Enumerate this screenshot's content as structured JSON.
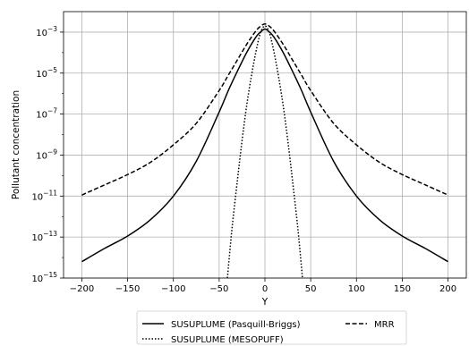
{
  "chart_data": {
    "type": "line",
    "xlabel": "Y",
    "ylabel": "Pollutant concentration",
    "xlim": [
      -220,
      220
    ],
    "ylim_log10": [
      -15,
      -2
    ],
    "y_scale": "log",
    "grid": true,
    "legend_placement": "bottom-center-outside",
    "x_ticks": [
      {
        "value": -200,
        "label": "−200"
      },
      {
        "value": -150,
        "label": "−150"
      },
      {
        "value": -100,
        "label": "−100"
      },
      {
        "value": -50,
        "label": "−50"
      },
      {
        "value": 0,
        "label": "0"
      },
      {
        "value": 50,
        "label": "50"
      },
      {
        "value": 100,
        "label": "100"
      },
      {
        "value": 150,
        "label": "150"
      },
      {
        "value": 200,
        "label": "200"
      }
    ],
    "y_ticks": [
      {
        "exp": -3,
        "base": "10",
        "sup": "−3"
      },
      {
        "exp": -5,
        "base": "10",
        "sup": "−5"
      },
      {
        "exp": -7,
        "base": "10",
        "sup": "−7"
      },
      {
        "exp": -9,
        "base": "10",
        "sup": "−9"
      },
      {
        "exp": -11,
        "base": "10",
        "sup": "−11"
      },
      {
        "exp": -13,
        "base": "10",
        "sup": "−13"
      },
      {
        "exp": -15,
        "base": "10",
        "sup": "−15"
      }
    ],
    "series": [
      {
        "name": "SUSUPLUME (Pasquill-Briggs)",
        "style": "solid",
        "color": "#000000",
        "x": [
          -200,
          -175,
          -150,
          -125,
          -100,
          -75,
          -50,
          -40,
          -30,
          -20,
          -10,
          -5,
          0,
          5,
          10,
          20,
          30,
          40,
          50,
          75,
          100,
          125,
          150,
          175,
          200
        ],
        "log10_y": [
          -14.2,
          -13.55,
          -12.95,
          -12.15,
          -11.0,
          -9.3,
          -6.9,
          -5.85,
          -4.9,
          -4.0,
          -3.25,
          -3.0,
          -2.85,
          -3.0,
          -3.25,
          -4.0,
          -4.9,
          -5.85,
          -6.9,
          -9.3,
          -11.0,
          -12.15,
          -12.95,
          -13.55,
          -14.2
        ]
      },
      {
        "name": "SUSUPLUME (MESOPUFF)",
        "style": "dotted",
        "color": "#000000",
        "x": [
          -41,
          -36,
          -30,
          -25,
          -20,
          -15,
          -10,
          -5,
          0,
          5,
          10,
          15,
          20,
          25,
          30,
          36,
          41
        ],
        "log10_y": [
          -15.0,
          -12.6,
          -10.2,
          -8.3,
          -6.6,
          -5.2,
          -4.0,
          -3.05,
          -2.7,
          -3.05,
          -4.0,
          -5.2,
          -6.6,
          -8.3,
          -10.2,
          -12.6,
          -15.0
        ]
      },
      {
        "name": "MRR",
        "style": "dashed",
        "color": "#000000",
        "x": [
          -200,
          -175,
          -150,
          -125,
          -100,
          -75,
          -50,
          -40,
          -30,
          -20,
          -10,
          -5,
          0,
          5,
          10,
          20,
          30,
          40,
          50,
          75,
          100,
          125,
          150,
          175,
          200
        ],
        "log10_y": [
          -10.95,
          -10.45,
          -9.95,
          -9.35,
          -8.5,
          -7.45,
          -5.85,
          -5.1,
          -4.35,
          -3.6,
          -2.95,
          -2.72,
          -2.6,
          -2.72,
          -2.95,
          -3.6,
          -4.35,
          -5.1,
          -5.85,
          -7.45,
          -8.5,
          -9.35,
          -9.95,
          -10.45,
          -10.95
        ]
      }
    ]
  }
}
